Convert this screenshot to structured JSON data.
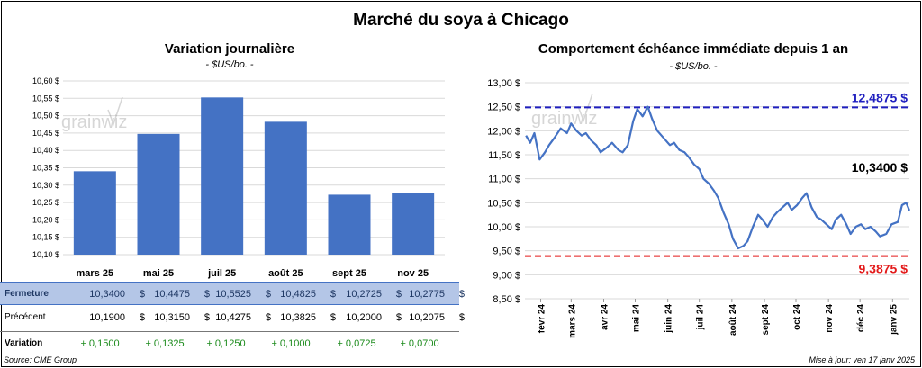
{
  "title": "Marché du soya à Chicago",
  "source": "Source: CME Group",
  "updated": "Mise à jour: ven 17 janv 2025",
  "watermark": "grainwiz",
  "chart_data": [
    {
      "type": "bar",
      "title": "Variation journalière",
      "unit": "- $US/bo. -",
      "categories": [
        "mars 25",
        "mai 25",
        "juil 25",
        "août 25",
        "sept 25",
        "nov 25"
      ],
      "values": [
        10.34,
        10.4475,
        10.5525,
        10.4825,
        10.2725,
        10.2775
      ],
      "ylim": [
        10.1,
        10.6
      ],
      "yticks": [
        "10,10 $",
        "10,15 $",
        "10,20 $",
        "10,25 $",
        "10,30 $",
        "10,35 $",
        "10,40 $",
        "10,45 $",
        "10,50 $",
        "10,55 $",
        "10,60 $"
      ],
      "bar_color": "#4472c4",
      "grid": true
    },
    {
      "type": "line",
      "title": "Comportement échéance immédiate depuis 1 an",
      "unit": "- $US/bo. -",
      "x_tick_labels": [
        "févr 24",
        "mars 24",
        "avr 24",
        "mai 24",
        "juin 24",
        "juil 24",
        "août 24",
        "sept 24",
        "oct 24",
        "nov 24",
        "déc 24",
        "janv 25"
      ],
      "x_range": [
        "2024-01-17",
        "2025-01-17"
      ],
      "yticks": [
        "8,50 $",
        "9,00 $",
        "9,50 $",
        "10,00 $",
        "10,50 $",
        "11,00 $",
        "11,50 $",
        "12,00 $",
        "12,50 $",
        "13,00 $"
      ],
      "ylim": [
        8.5,
        13.0
      ],
      "line_color": "#4472c4",
      "series": [
        {
          "x": [
            "2024-01-18",
            "2024-01-22",
            "2024-01-26",
            "2024-01-31",
            "2024-02-05",
            "2024-02-09",
            "2024-02-14",
            "2024-02-20",
            "2024-02-26",
            "2024-03-01",
            "2024-03-06",
            "2024-03-11",
            "2024-03-15",
            "2024-03-20",
            "2024-03-25",
            "2024-03-29",
            "2024-04-04",
            "2024-04-09",
            "2024-04-15",
            "2024-04-19",
            "2024-04-24",
            "2024-04-29",
            "2024-05-03",
            "2024-05-08",
            "2024-05-13",
            "2024-05-17",
            "2024-05-22",
            "2024-05-28",
            "2024-06-03",
            "2024-06-07",
            "2024-06-12",
            "2024-06-17",
            "2024-06-21",
            "2024-06-26",
            "2024-07-01",
            "2024-07-05",
            "2024-07-10",
            "2024-07-15",
            "2024-07-19",
            "2024-07-24",
            "2024-07-29",
            "2024-08-02",
            "2024-08-07",
            "2024-08-12",
            "2024-08-16",
            "2024-08-21",
            "2024-08-26",
            "2024-08-30",
            "2024-09-04",
            "2024-09-09",
            "2024-09-13",
            "2024-09-18",
            "2024-09-23",
            "2024-09-27",
            "2024-10-02",
            "2024-10-07",
            "2024-10-11",
            "2024-10-16",
            "2024-10-21",
            "2024-10-25",
            "2024-10-30",
            "2024-11-04",
            "2024-11-08",
            "2024-11-13",
            "2024-11-18",
            "2024-11-22",
            "2024-11-27",
            "2024-12-02",
            "2024-12-06",
            "2024-12-11",
            "2024-12-16",
            "2024-12-20",
            "2024-12-26",
            "2024-12-31",
            "2025-01-06",
            "2025-01-10",
            "2025-01-14",
            "2025-01-17"
          ],
          "y": [
            11.9,
            11.75,
            11.95,
            11.4,
            11.55,
            11.7,
            11.85,
            12.05,
            11.95,
            12.15,
            12.0,
            11.9,
            11.95,
            11.8,
            11.7,
            11.55,
            11.65,
            11.75,
            11.6,
            11.55,
            11.7,
            12.2,
            12.45,
            12.3,
            12.5,
            12.25,
            12.0,
            11.85,
            11.7,
            11.75,
            11.6,
            11.55,
            11.45,
            11.3,
            11.2,
            11.0,
            10.9,
            10.75,
            10.6,
            10.3,
            10.05,
            9.75,
            9.55,
            9.6,
            9.7,
            10.0,
            10.25,
            10.15,
            10.0,
            10.2,
            10.3,
            10.4,
            10.5,
            10.35,
            10.45,
            10.6,
            10.7,
            10.4,
            10.2,
            10.15,
            10.05,
            9.95,
            10.15,
            10.25,
            10.05,
            9.85,
            10.0,
            10.05,
            9.95,
            10.0,
            9.9,
            9.8,
            9.85,
            10.05,
            10.1,
            10.45,
            10.5,
            10.34
          ]
        }
      ],
      "reference_lines": [
        {
          "value": 12.4875,
          "label": "12,4875 $",
          "color": "#1f1fbf"
        },
        {
          "value": 9.3875,
          "label": "9,3875 $",
          "color": "#e31a1a"
        }
      ],
      "annotation": {
        "label": "10,3400 $",
        "value": 10.34
      }
    }
  ],
  "table": {
    "rows": [
      {
        "label": "Fermeture",
        "cells": [
          "10,3400",
          "10,4475",
          "10,5525",
          "10,4825",
          "10,2725",
          "10,2775"
        ],
        "currency": "$"
      },
      {
        "label": "Précédent",
        "cells": [
          "10,1900",
          "10,3150",
          "10,4275",
          "10,3825",
          "10,2000",
          "10,2075"
        ],
        "currency": "$"
      },
      {
        "label": "Variation",
        "cells": [
          "+ 0,1500",
          "+ 0,1325",
          "+ 0,1250",
          "+ 0,1000",
          "+ 0,0725",
          "+ 0,0700"
        ]
      }
    ]
  }
}
